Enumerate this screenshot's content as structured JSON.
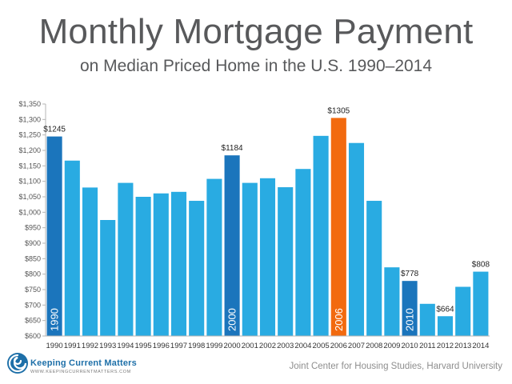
{
  "header": {
    "title": "Monthly Mortgage Payment",
    "subtitle": "on Median Priced Home in the U.S. 1990–2014"
  },
  "footer": {
    "logo_name": "Keeping Current Matters",
    "logo_url": "WWW.KEEPINGCURRENTMATTERS.COM",
    "source": "Joint Center for Housing Studies, Harvard University"
  },
  "colors": {
    "bar": "#29abe2",
    "highlight": "#1b75bc",
    "peak": "#f26a0f",
    "text": "#58595b",
    "axis": "#b5b5b5"
  },
  "chart_data": {
    "type": "bar",
    "title": "Monthly Mortgage Payment",
    "subtitle": "on Median Priced Home in the U.S. 1990–2014",
    "xlabel": "",
    "ylabel": "",
    "ylim": [
      600,
      1350
    ],
    "yticks": [
      "$600",
      "$650",
      "$700",
      "$750",
      "$800",
      "$850",
      "$900",
      "$950",
      "$1,000",
      "$1,050",
      "$1,100",
      "$1,150",
      "$1,200",
      "$1,250",
      "$1,300",
      "$1,350"
    ],
    "grid": false,
    "categories": [
      "1990",
      "1991",
      "1992",
      "1993",
      "1994",
      "1995",
      "1996",
      "1997",
      "1998",
      "1999",
      "2000",
      "2001",
      "2002",
      "2003",
      "2004",
      "2005",
      "2006",
      "2007",
      "2008",
      "2009",
      "2010",
      "2011",
      "2012",
      "2013",
      "2014"
    ],
    "values": [
      1245,
      1167,
      1080,
      975,
      1095,
      1050,
      1061,
      1066,
      1037,
      1108,
      1184,
      1095,
      1110,
      1081,
      1140,
      1247,
      1305,
      1224,
      1037,
      822,
      778,
      704,
      664,
      759,
      808
    ],
    "highlighted": [
      "1990",
      "2000",
      "2010"
    ],
    "peak": "2006",
    "data_labels": [
      {
        "category": "1990",
        "text": "$1245"
      },
      {
        "category": "2000",
        "text": "$1184"
      },
      {
        "category": "2006",
        "text": "$1305"
      },
      {
        "category": "2010",
        "text": "$778"
      },
      {
        "category": "2012",
        "text": "$664"
      },
      {
        "category": "2014",
        "text": "$808"
      }
    ],
    "inner_labels": [
      "1990",
      "2000",
      "2006",
      "2010"
    ]
  }
}
